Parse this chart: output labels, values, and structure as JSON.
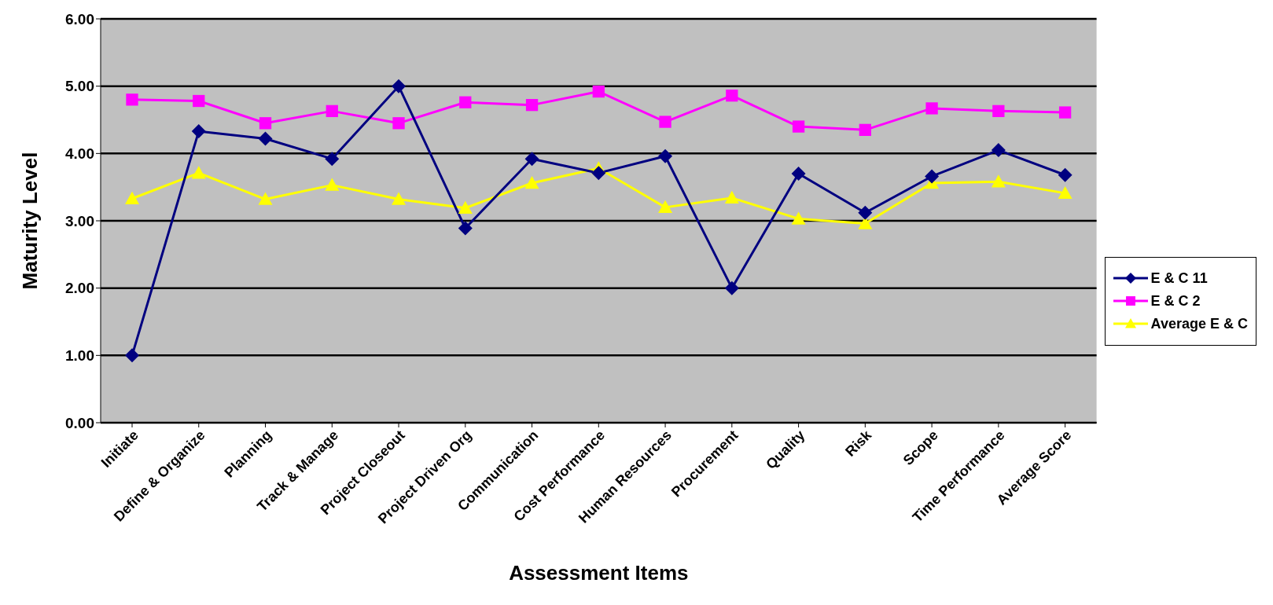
{
  "chart_data": {
    "type": "line",
    "xlabel": "Assessment Items",
    "ylabel": "Maturity Level",
    "categories": [
      "Initiate",
      "Define & Organize",
      "Planning",
      "Track & Manage",
      "Project Closeout",
      "Project Driven Org",
      "Communication",
      "Cost Performance",
      "Human Resources",
      "Procurement",
      "Quality",
      "Risk",
      "Scope",
      "Time Performance",
      "Average Score"
    ],
    "series": [
      {
        "name": "E & C 11",
        "color": "#000080",
        "marker": "diamond",
        "values": [
          1.0,
          4.33,
          4.22,
          3.92,
          5.0,
          2.89,
          3.92,
          3.71,
          3.96,
          2.0,
          3.7,
          3.12,
          3.66,
          4.05,
          3.68
        ]
      },
      {
        "name": "E & C 2",
        "color": "#ff00ff",
        "marker": "square",
        "values": [
          4.8,
          4.78,
          4.45,
          4.63,
          4.45,
          4.76,
          4.72,
          4.92,
          4.47,
          4.86,
          4.4,
          4.35,
          4.67,
          4.63,
          4.61
        ]
      },
      {
        "name": "Average E & C",
        "color": "#ffff00",
        "marker": "triangle",
        "values": [
          3.33,
          3.71,
          3.32,
          3.53,
          3.32,
          3.19,
          3.56,
          3.78,
          3.2,
          3.34,
          3.03,
          2.96,
          3.56,
          3.58,
          3.41
        ]
      }
    ],
    "ylim": [
      0,
      6
    ],
    "yticks": [
      {
        "value": 0,
        "label": "0.00"
      },
      {
        "value": 1,
        "label": "1.00"
      },
      {
        "value": 2,
        "label": "2.00"
      },
      {
        "value": 3,
        "label": "3.00"
      },
      {
        "value": 4,
        "label": "4.00"
      },
      {
        "value": 5,
        "label": "5.00"
      },
      {
        "value": 6,
        "label": "6.00"
      }
    ],
    "grid": "y",
    "legend": "right",
    "line_style": "solid"
  }
}
